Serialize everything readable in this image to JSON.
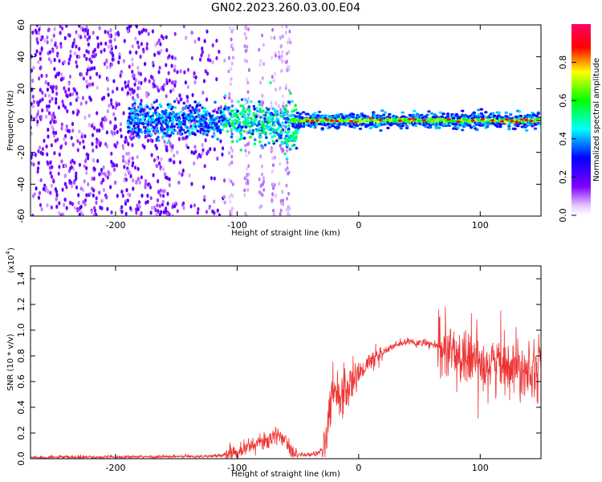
{
  "title": "GN02.2023.260.03.00.E04",
  "colors": {
    "snr_line": "#ee3333",
    "frame": "#000000",
    "background": "#ffffff"
  },
  "chart_data": [
    {
      "type": "heatmap",
      "xlabel": "Height of straight line (km)",
      "ylabel": "Frequency (Hz)",
      "xlim": [
        -270,
        150
      ],
      "ylim": [
        -60,
        60
      ],
      "xticks": [
        -200,
        -100,
        0,
        100
      ],
      "yticks": [
        -60,
        -40,
        -20,
        0,
        20,
        40,
        60
      ],
      "colorbar": {
        "label": "Normalized spectral amplitude",
        "range": [
          0,
          1
        ],
        "ticks": [
          "0.0",
          "0.2",
          "0.4",
          "0.6",
          "0.8"
        ],
        "colormap": "rainbow"
      },
      "grid": false
    },
    {
      "type": "line",
      "xlabel": "Height of straight line (km)",
      "ylabel": "SNR (10 * v/v)",
      "scale_note": "(x10",
      "scale_exp": "4",
      "xlim": [
        -270,
        150
      ],
      "ylim": [
        0,
        1.5
      ],
      "xticks": [
        -200,
        -100,
        0,
        100
      ],
      "yticks": [
        "0.0",
        "0.2",
        "0.4",
        "0.6",
        "0.8",
        "1.0",
        "1.2",
        "1.4"
      ],
      "trend": {
        "x": [
          -270,
          -220,
          -160,
          -120,
          -110,
          -95,
          -80,
          -70,
          -65,
          -60,
          -55,
          -48,
          -40,
          -32,
          -28,
          -25,
          -22,
          -20,
          -15,
          -10,
          -5,
          0,
          10,
          20,
          30,
          40,
          50,
          60,
          65,
          70,
          80,
          90,
          100,
          110,
          120,
          130,
          140,
          150
        ],
        "y": [
          0.01,
          0.012,
          0.015,
          0.02,
          0.03,
          0.08,
          0.13,
          0.16,
          0.18,
          0.15,
          0.06,
          0.03,
          0.03,
          0.05,
          0.1,
          0.3,
          0.45,
          0.55,
          0.5,
          0.55,
          0.6,
          0.66,
          0.76,
          0.83,
          0.88,
          0.91,
          0.9,
          0.89,
          0.87,
          0.85,
          0.8,
          0.78,
          0.75,
          0.74,
          0.75,
          0.72,
          0.72,
          0.74
        ]
      },
      "grid": false
    }
  ]
}
